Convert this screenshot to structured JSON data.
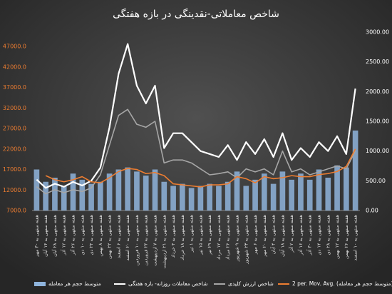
{
  "chart_data": {
    "type": "bar",
    "title": "شاخص معاملاتی-نقدینگی در بازه هفتگی",
    "categories": [
      "هفته منتهی به ۳۰ مهر",
      "هفته منتهی به ۱۴ آبان",
      "هفته منتهی به ۲۸ آبان",
      "هفته منتهی به ۱۲ آذر",
      "هفته منتهی به ۲۶ آذر",
      "هفته منتهی به ۱۰ دی",
      "هفته منتهی به ۲۴ دی",
      "هفته منتهی به ۸ بهمن",
      "هفته منتهی به ۲۲ بهمن",
      "هفته منتهی به ۶ اسفند",
      "هفته منتهی به ۲۰ اسفند",
      "هفته منتهی به ۱۰ فروردین",
      "هفته منتهی به ۲۴ فروردین",
      "هفته منتهی به ۷ اردیبهشت",
      "هفته منتهی به ۲۱ اردیبهشت",
      "هفته منتهی به ۴ خرداد",
      "هفته منتهی به ۱۸ خرداد",
      "هفته منتهی به ۱ تیر",
      "هفته منتهی به ۱۵ تیر",
      "هفته منتهی به ۲۹ تیر",
      "هفته منتهی به ۱۲ مرداد",
      "هفته منتهی به ۲۶ مرداد",
      "هفته منتهی به ۹ شهریور",
      "هفته منتهی به ۲۳ شهریور",
      "هفته منتهی به ۶ مهر",
      "هفته منتهی به ۲۰ مهر",
      "هفته منتهی به ۴ آبان",
      "هفته منتهی به ۱۸ آبان",
      "هفته منتهی به ۲ آذر",
      "هفته منتهی به ۱۶ آذر",
      "هفته منتهی به ۳۰ آذر",
      "هفته منتهی به ۱۴ دی",
      "هفته منتهی به ۲۸ دی",
      "هفته منتهی به ۱۲ بهمن",
      "هفته منتهی به ۲۶ بهمن",
      "هفته منتهی به ۱۰ اسفند"
    ],
    "series": [
      {
        "name": "متوسط حجم هر معامله",
        "type": "bar",
        "color": "#8fb4dc",
        "values": [
          17000,
          14000,
          15000,
          13000,
          16000,
          14500,
          13500,
          14000,
          16000,
          17000,
          17500,
          16500,
          15500,
          17000,
          14000,
          13000,
          13500,
          12500,
          13000,
          13500,
          13000,
          14000,
          16500,
          13000,
          14500,
          16000,
          13500,
          16500,
          14500,
          16000,
          14500,
          17000,
          15000,
          18000,
          17500,
          26500
        ]
      },
      {
        "name": "شاخص معاملات روزانه- بازه هفتگی",
        "type": "line",
        "axis": "y2",
        "color": "#ffffff",
        "values": [
          520,
          380,
          450,
          400,
          480,
          420,
          500,
          720,
          1400,
          2300,
          2800,
          2100,
          1800,
          2100,
          1050,
          1300,
          1300,
          1150,
          1000,
          950,
          900,
          1100,
          850,
          1150,
          950,
          1200,
          900,
          1300,
          850,
          1050,
          900,
          1150,
          1000,
          1250,
          950,
          2050
        ]
      },
      {
        "name": "شاخص ارزش کلیدی",
        "type": "line",
        "axis": "y2",
        "color": "#a6a6a6",
        "values": [
          400,
          280,
          350,
          300,
          350,
          320,
          380,
          600,
          1100,
          1600,
          1700,
          1450,
          1400,
          1500,
          800,
          850,
          850,
          800,
          700,
          600,
          620,
          650,
          550,
          700,
          650,
          700,
          600,
          1000,
          650,
          700,
          600,
          650,
          700,
          750,
          700,
          1000
        ]
      },
      {
        "name": "2 per. Mov. Avg. (متوسط حجم هر معامله)",
        "type": "line",
        "color": "#ed7d31",
        "values": [
          null,
          15500,
          14500,
          14000,
          14500,
          15250,
          14000,
          13750,
          15000,
          16500,
          17250,
          17000,
          16000,
          16250,
          15500,
          13500,
          13250,
          13000,
          12750,
          13250,
          13250,
          13500,
          15250,
          14750,
          13750,
          15250,
          14750,
          15000,
          15500,
          15250,
          15250,
          15750,
          16000,
          16500,
          17750,
          22000
        ]
      }
    ],
    "ylim": [
      7000,
      47000
    ],
    "yticks": [
      {
        "value": 7000,
        "label": "7000.0"
      },
      {
        "value": 12000,
        "label": "12000.0"
      },
      {
        "value": 17000,
        "label": "17000.0"
      },
      {
        "value": 22000,
        "label": "22000.0"
      },
      {
        "value": 27000,
        "label": "27000.0"
      },
      {
        "value": 32000,
        "label": "32000.0"
      },
      {
        "value": 37000,
        "label": "37000.0"
      },
      {
        "value": 42000,
        "label": "42000.0"
      },
      {
        "value": 47000,
        "label": "47000.0"
      }
    ],
    "y2lim": [
      0,
      3000
    ],
    "y2ticks": [
      {
        "value": 0,
        "label": "0.00"
      },
      {
        "value": 500,
        "label": "500.00"
      },
      {
        "value": 1000,
        "label": "1000.00"
      },
      {
        "value": 1500,
        "label": "1500.00"
      },
      {
        "value": 2000,
        "label": "2000.00"
      },
      {
        "value": 2500,
        "label": "2500.00"
      },
      {
        "value": 3000,
        "label": "3000.00"
      }
    ],
    "ytick_color": "#ed7d31",
    "legend": "bottom"
  }
}
